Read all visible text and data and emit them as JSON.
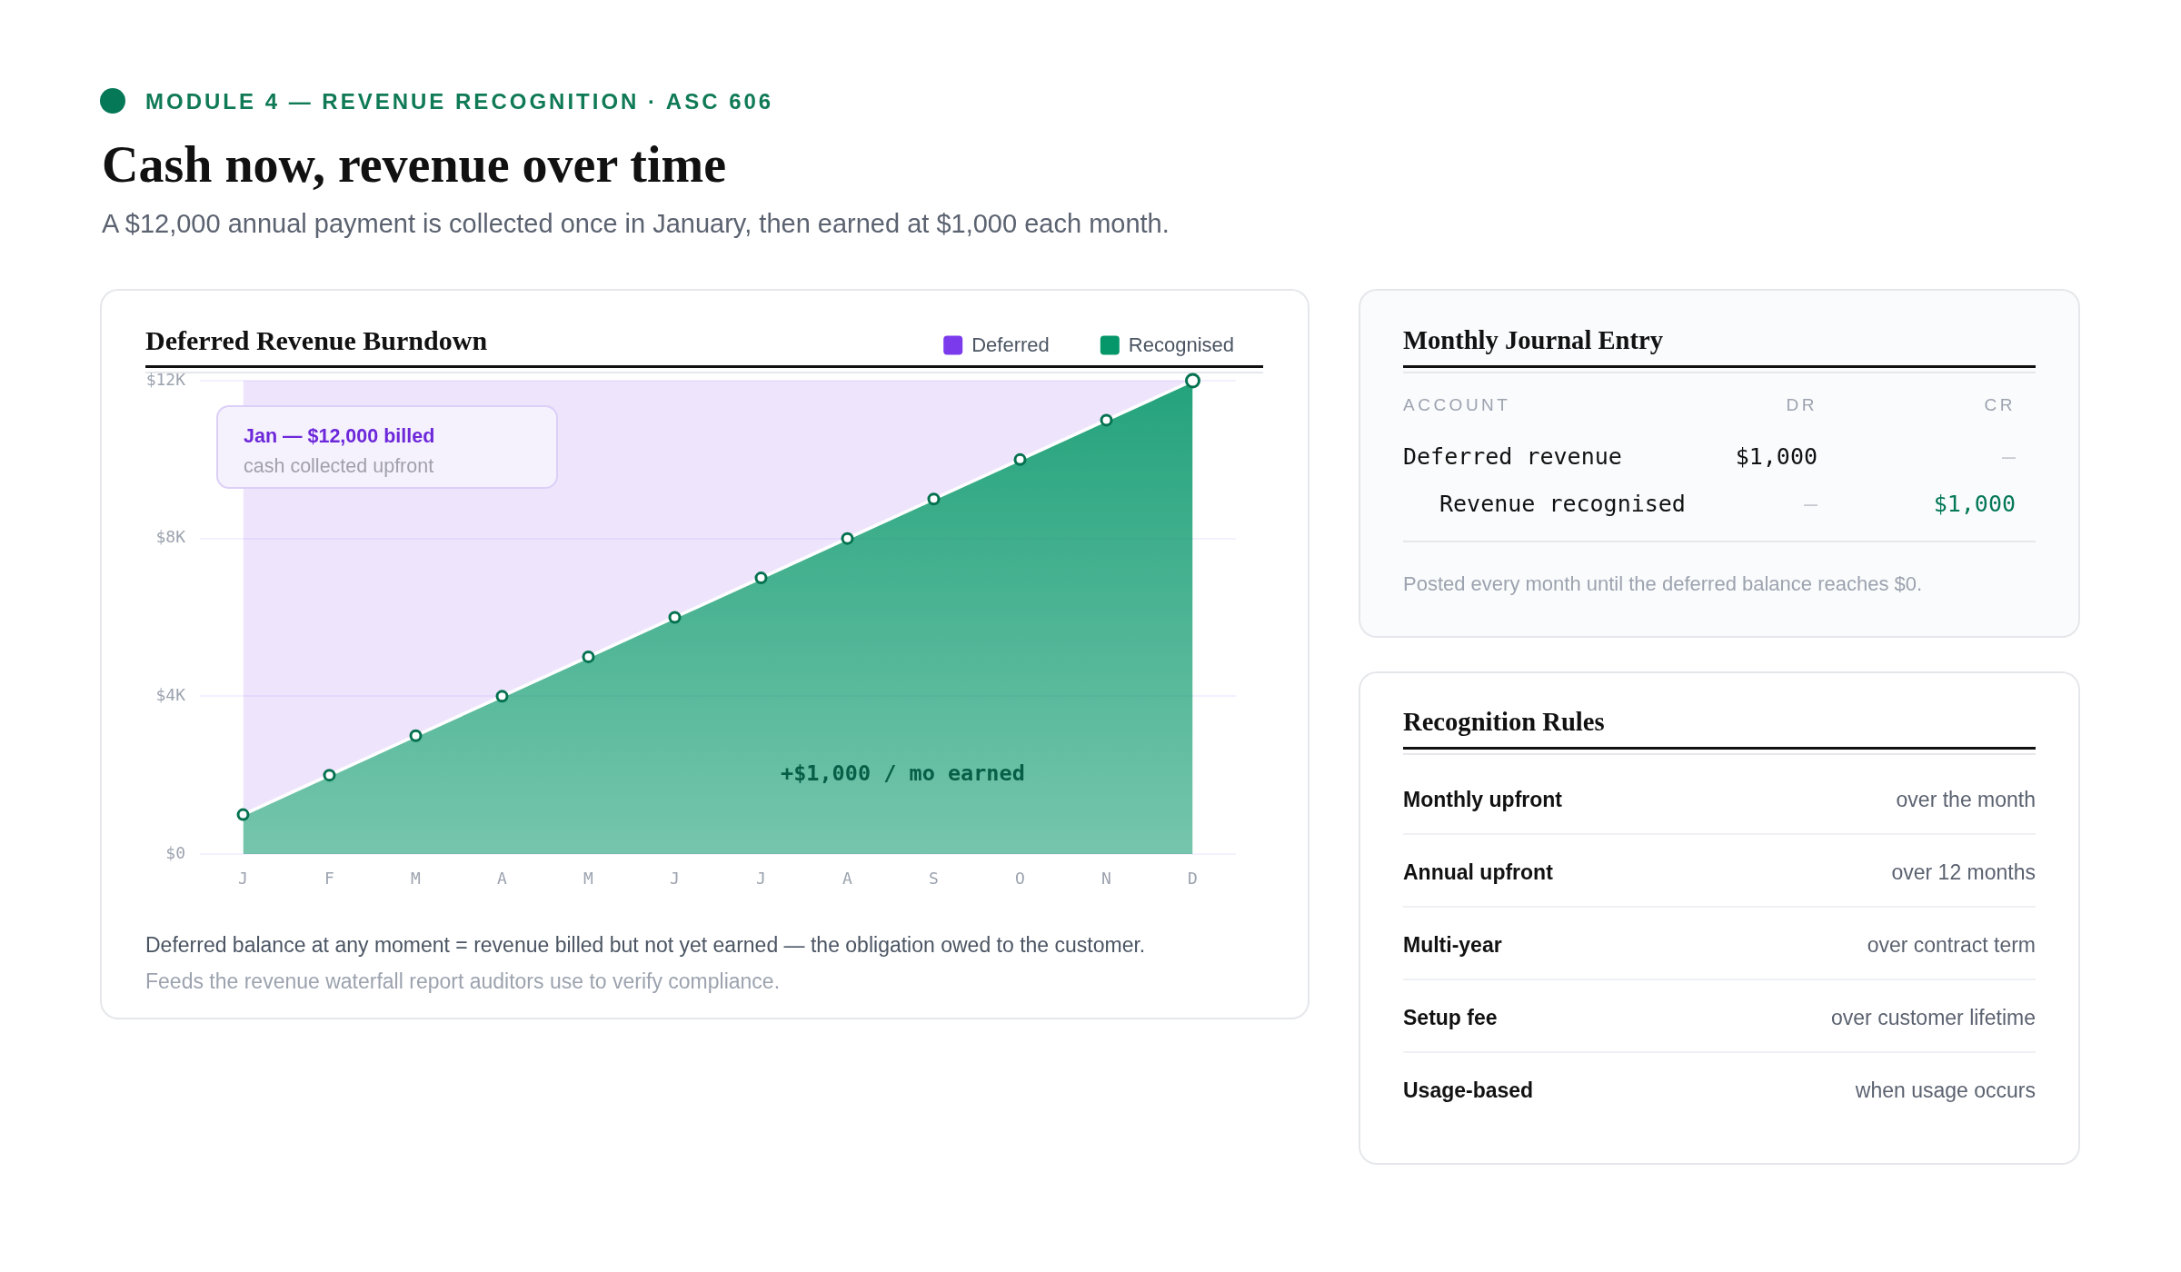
{
  "chart_data": [
    {
      "type": "other",
      "title": "Cash now, revenue over time",
      "subtitle": "A $12,000 annual payment is collected once in January, then earned at $1,000 each month.",
      "annotations": [
        "MODULE 4 — REVENUE RECOGNITION · ASC 606"
      ]
    },
    {
      "type": "area",
      "title": "Deferred Revenue Burndown",
      "stacked": true,
      "legend": "top right",
      "grid": "y",
      "categories": [
        "J",
        "F",
        "M",
        "A",
        "M",
        "J",
        "J",
        "A",
        "S",
        "O",
        "N",
        "D"
      ],
      "series": [
        {
          "name": "Recognised",
          "color": "#059669",
          "marker": "circle",
          "values": [
            1000,
            2000,
            3000,
            4000,
            5000,
            6000,
            7000,
            8000,
            9000,
            10000,
            11000,
            12000
          ]
        },
        {
          "name": "Deferred",
          "color": "#7c3aed",
          "values": [
            11000,
            10000,
            9000,
            8000,
            7000,
            6000,
            5000,
            4000,
            3000,
            2000,
            1000,
            0
          ]
        }
      ],
      "ylim": [
        0,
        12000
      ],
      "yticks": [
        {
          "value": 0,
          "label": "$0"
        },
        {
          "value": 4000,
          "label": "$4K"
        },
        {
          "value": 8000,
          "label": "$8K"
        },
        {
          "value": 12000,
          "label": "$12K"
        }
      ],
      "annotations": [
        "Jan — $12,000 billed",
        "cash collected upfront",
        "+$1,000 / mo earned",
        "Deferred balance at any moment = revenue billed but not yet earned — the obligation owed to the customer.",
        "Feeds the revenue waterfall report auditors use to verify compliance."
      ]
    },
    {
      "type": "other",
      "title": "Monthly Journal Entry",
      "annotations": [
        "ACCOUNT",
        "DR",
        "CR",
        "Deferred revenue",
        "$1,000",
        "—",
        "Revenue recognised",
        "—",
        "$1,000",
        "Posted every month until the deferred balance reaches $0."
      ]
    },
    {
      "type": "other",
      "title": "Recognition Rules",
      "annotations": [
        "Monthly upfront",
        "over the month",
        "Annual upfront",
        "over 12 months",
        "Multi-year",
        "over contract term",
        "Setup fee",
        "over customer lifetime",
        "Usage-based",
        "when usage occurs"
      ]
    }
  ]
}
